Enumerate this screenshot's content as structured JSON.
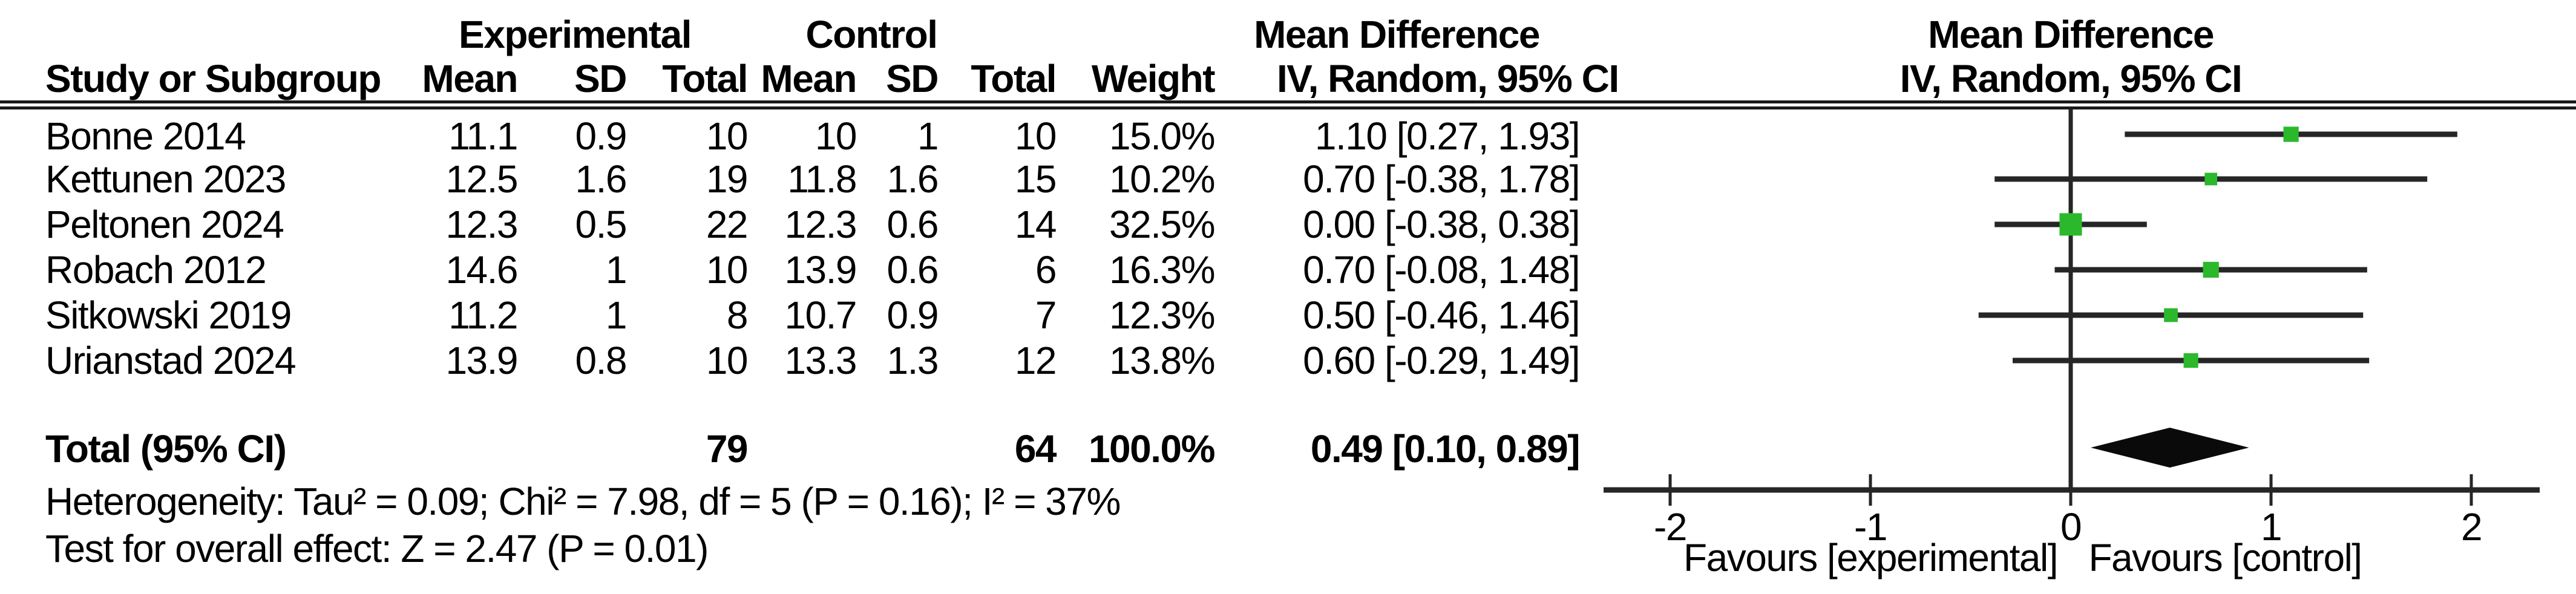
{
  "table": {
    "headers": {
      "group_experimental": "Experimental",
      "group_control": "Control",
      "effect": "Mean Difference",
      "effect_method": "IV, Random, 95% CI",
      "study": "Study or Subgroup",
      "mean": "Mean",
      "sd": "SD",
      "total": "Total",
      "weight": "Weight"
    },
    "plot_header": {
      "line1": "Mean Difference",
      "line2": "IV, Random, 95% CI"
    },
    "rows": [
      {
        "study": "Bonne 2014",
        "exp_mean": "11.1",
        "exp_sd": "0.9",
        "exp_total": "10",
        "ctrl_mean": "10",
        "ctrl_sd": "1",
        "ctrl_total": "10",
        "weight": "15.0%",
        "ci": "1.10 [0.27, 1.93]"
      },
      {
        "study": "Kettunen 2023",
        "exp_mean": "12.5",
        "exp_sd": "1.6",
        "exp_total": "19",
        "ctrl_mean": "11.8",
        "ctrl_sd": "1.6",
        "ctrl_total": "15",
        "weight": "10.2%",
        "ci": "0.70 [-0.38, 1.78]"
      },
      {
        "study": "Peltonen 2024",
        "exp_mean": "12.3",
        "exp_sd": "0.5",
        "exp_total": "22",
        "ctrl_mean": "12.3",
        "ctrl_sd": "0.6",
        "ctrl_total": "14",
        "weight": "32.5%",
        "ci": "0.00 [-0.38, 0.38]"
      },
      {
        "study": "Robach 2012",
        "exp_mean": "14.6",
        "exp_sd": "1",
        "exp_total": "10",
        "ctrl_mean": "13.9",
        "ctrl_sd": "0.6",
        "ctrl_total": "6",
        "weight": "16.3%",
        "ci": "0.70 [-0.08, 1.48]"
      },
      {
        "study": "Sitkowski 2019",
        "exp_mean": "11.2",
        "exp_sd": "1",
        "exp_total": "8",
        "ctrl_mean": "10.7",
        "ctrl_sd": "0.9",
        "ctrl_total": "7",
        "weight": "12.3%",
        "ci": "0.50 [-0.46, 1.46]"
      },
      {
        "study": "Urianstad 2024",
        "exp_mean": "13.9",
        "exp_sd": "0.8",
        "exp_total": "10",
        "ctrl_mean": "13.3",
        "ctrl_sd": "1.3",
        "ctrl_total": "12",
        "weight": "13.8%",
        "ci": "0.60 [-0.29, 1.49]"
      }
    ],
    "total_row": {
      "label": "Total (95% CI)",
      "exp_total": "79",
      "ctrl_total": "64",
      "weight": "100.0%",
      "ci": "0.49 [0.10, 0.89]"
    },
    "heterogeneity": "Heterogeneity: Tau² = 0.09; Chi² = 7.98, df = 5 (P = 0.16); I² = 37%",
    "overall_effect": "Test for overall effect: Z = 2.47 (P = 0.01)"
  },
  "axis": {
    "tick_labels": [
      "-2",
      "-1",
      "0",
      "1",
      "2"
    ],
    "favours_left": "Favours [experimental]",
    "favours_right": "Favours [control]"
  },
  "colors": {
    "marker_green": "#2cb82c",
    "line_dark": "#262626",
    "diamond_black": "#0a0a0a"
  },
  "chart_data": {
    "type": "scatter",
    "subtype": "forest_plot",
    "title": "Mean Difference, IV, Random, 95% CI",
    "x_ticks": [
      -2,
      -1,
      0,
      1,
      2
    ],
    "xlim": [
      -2.35,
      2.35
    ],
    "studies": [
      {
        "name": "Bonne 2014",
        "md": 1.1,
        "ci_low": 0.27,
        "ci_high": 1.93,
        "weight_pct": 15.0
      },
      {
        "name": "Kettunen 2023",
        "md": 0.7,
        "ci_low": -0.38,
        "ci_high": 1.78,
        "weight_pct": 10.2
      },
      {
        "name": "Peltonen 2024",
        "md": 0.0,
        "ci_low": -0.38,
        "ci_high": 0.38,
        "weight_pct": 32.5
      },
      {
        "name": "Robach 2012",
        "md": 0.7,
        "ci_low": -0.08,
        "ci_high": 1.48,
        "weight_pct": 16.3
      },
      {
        "name": "Sitkowski 2019",
        "md": 0.5,
        "ci_low": -0.46,
        "ci_high": 1.46,
        "weight_pct": 12.3
      },
      {
        "name": "Urianstad 2024",
        "md": 0.6,
        "ci_low": -0.29,
        "ci_high": 1.49,
        "weight_pct": 13.8
      }
    ],
    "total": {
      "label": "Total (95% CI)",
      "md": 0.49,
      "ci_low": 0.1,
      "ci_high": 0.89
    },
    "favours_left": "Favours [experimental]",
    "favours_right": "Favours [control]"
  }
}
